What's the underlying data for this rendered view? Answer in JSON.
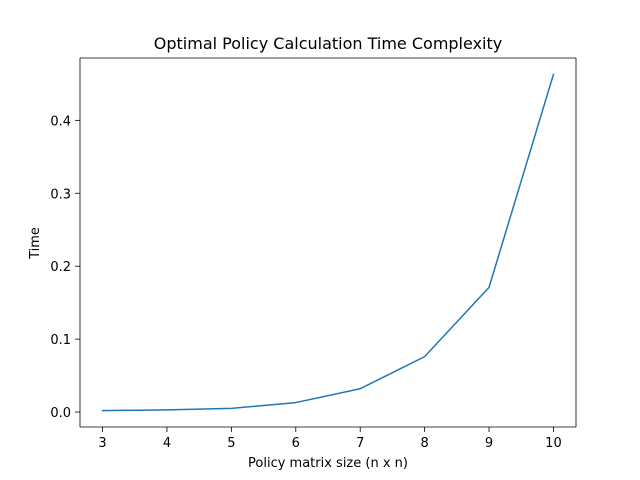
{
  "chart_data": {
    "type": "line",
    "title": "Optimal Policy Calculation Time Complexity",
    "xlabel": "Policy matrix size (n x n)",
    "ylabel": "Time",
    "x": [
      3,
      4,
      5,
      6,
      7,
      8,
      9,
      10
    ],
    "series": [
      {
        "values": [
          0.002,
          0.003,
          0.005,
          0.013,
          0.032,
          0.076,
          0.171,
          0.463
        ],
        "color": "#1f77b4"
      }
    ],
    "xlim": [
      2.65,
      10.35
    ],
    "ylim": [
      -0.0205,
      0.4855
    ],
    "xticks": [
      3,
      4,
      5,
      6,
      7,
      8,
      9,
      10
    ],
    "yticks": [
      0.0,
      0.1,
      0.2,
      0.3,
      0.4
    ],
    "ytick_labels": [
      "0.0",
      "0.1",
      "0.2",
      "0.3",
      "0.4"
    ],
    "grid": false,
    "legend": "none"
  }
}
